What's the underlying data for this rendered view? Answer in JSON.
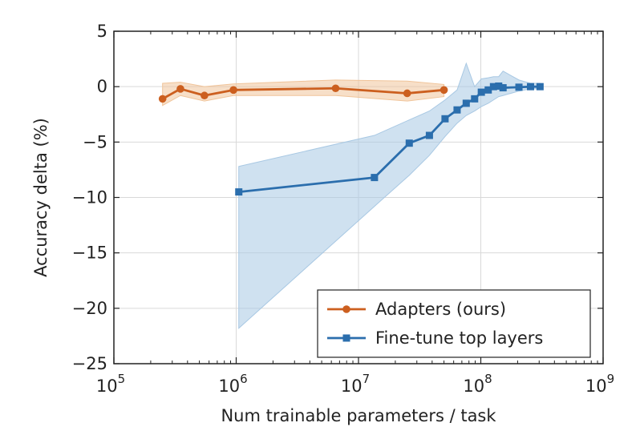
{
  "chart_data": {
    "type": "line",
    "xscale": "log",
    "xlabel": "Num trainable parameters / task",
    "ylabel": "Accuracy delta (%)",
    "xlim": [
      100000,
      1000000000
    ],
    "ylim": [
      -25,
      5
    ],
    "grid": true,
    "legend_position": "bottom-right",
    "x_ticks": [
      {
        "value": 100000,
        "base": "10",
        "exp": "5"
      },
      {
        "value": 1000000,
        "base": "10",
        "exp": "6"
      },
      {
        "value": 10000000,
        "base": "10",
        "exp": "7"
      },
      {
        "value": 100000000,
        "base": "10",
        "exp": "8"
      },
      {
        "value": 1000000000,
        "base": "10",
        "exp": "9"
      }
    ],
    "y_ticks": [
      {
        "value": 5,
        "label": "5"
      },
      {
        "value": 0,
        "label": "0"
      },
      {
        "value": -5,
        "label": "−5"
      },
      {
        "value": -10,
        "label": "−10"
      },
      {
        "value": -15,
        "label": "−15"
      },
      {
        "value": -20,
        "label": "−20"
      },
      {
        "value": -25,
        "label": "−25"
      }
    ],
    "series": [
      {
        "name": "Adapters (ours)",
        "color": "#cc5f1f",
        "fill_color": "#f0c49a",
        "marker": "circle",
        "x": [
          250000,
          350000,
          550000,
          950000,
          6500000,
          25000000,
          50000000
        ],
        "y": [
          -1.1,
          -0.2,
          -0.8,
          -0.3,
          -0.15,
          -0.6,
          -0.3
        ],
        "band_x": [
          250000,
          350000,
          550000,
          950000,
          6500000,
          25000000,
          50000000
        ],
        "band_upper": [
          0.3,
          0.4,
          0.0,
          0.25,
          0.6,
          0.5,
          0.2
        ],
        "band_lower": [
          -1.7,
          -0.8,
          -1.3,
          -0.8,
          -0.8,
          -1.3,
          -0.9
        ]
      },
      {
        "name": "Fine-tune top layers",
        "color": "#2b6ead",
        "fill_color": "#a8c8e3",
        "marker": "square",
        "x": [
          1050000,
          13500000,
          26000000,
          38000000,
          51000000,
          64000000,
          76000000,
          89000000,
          101000000,
          115000000,
          127000000,
          140000000,
          152000000,
          205000000,
          255000000,
          305000000
        ],
        "y": [
          -9.5,
          -8.2,
          -5.1,
          -4.4,
          -2.9,
          -2.1,
          -1.5,
          -1.1,
          -0.5,
          -0.3,
          0.0,
          0.05,
          -0.1,
          -0.05,
          0.0,
          0.0
        ],
        "band_x": [
          1050000,
          13500000,
          26000000,
          38000000,
          51000000,
          64000000,
          76000000,
          89000000,
          101000000,
          115000000,
          127000000,
          140000000,
          152000000,
          205000000,
          255000000,
          305000000
        ],
        "band_upper": [
          -7.2,
          -4.4,
          -3.0,
          -2.2,
          -1.2,
          -0.3,
          2.1,
          0.0,
          0.7,
          0.8,
          0.9,
          0.9,
          1.4,
          0.6,
          0.3,
          0.3
        ],
        "band_lower": [
          -21.8,
          -10.8,
          -8.0,
          -6.2,
          -4.5,
          -3.3,
          -2.6,
          -2.2,
          -1.8,
          -1.5,
          -1.2,
          -0.9,
          -0.8,
          -0.4,
          -0.2,
          -0.2
        ]
      }
    ]
  }
}
